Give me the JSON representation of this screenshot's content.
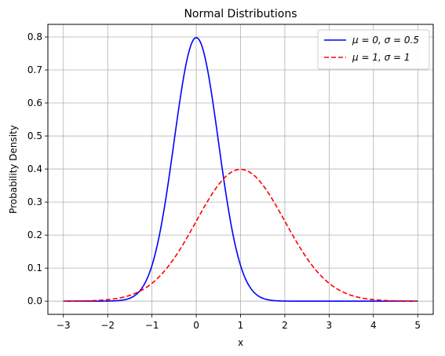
{
  "chart_data": {
    "type": "line",
    "title": "Normal Distributions",
    "xlabel": "x",
    "ylabel": "Probability Density",
    "xlim": [
      -3.35,
      5.35
    ],
    "ylim": [
      -0.04,
      0.838
    ],
    "xticks": [
      -3,
      -2,
      -1,
      0,
      1,
      2,
      3,
      4,
      5
    ],
    "yticks": [
      0.0,
      0.1,
      0.2,
      0.3,
      0.4,
      0.5,
      0.6,
      0.7,
      0.8
    ],
    "xtick_labels": [
      "−3",
      "−2",
      "−1",
      "0",
      "1",
      "2",
      "3",
      "4",
      "5"
    ],
    "ytick_labels": [
      "0.0",
      "0.1",
      "0.2",
      "0.3",
      "0.4",
      "0.5",
      "0.6",
      "0.7",
      "0.8"
    ],
    "grid": true,
    "legend_position": "top-right",
    "x_range": [
      -3,
      5
    ],
    "series": [
      {
        "name": "μ = 0, σ = 0.5",
        "mu": 0,
        "sigma": 0.5,
        "color": "#0000ff",
        "linestyle": "solid"
      },
      {
        "name": "μ = 1, σ = 1",
        "mu": 1,
        "sigma": 1,
        "color": "#ff0000",
        "linestyle": "dashed"
      }
    ]
  }
}
